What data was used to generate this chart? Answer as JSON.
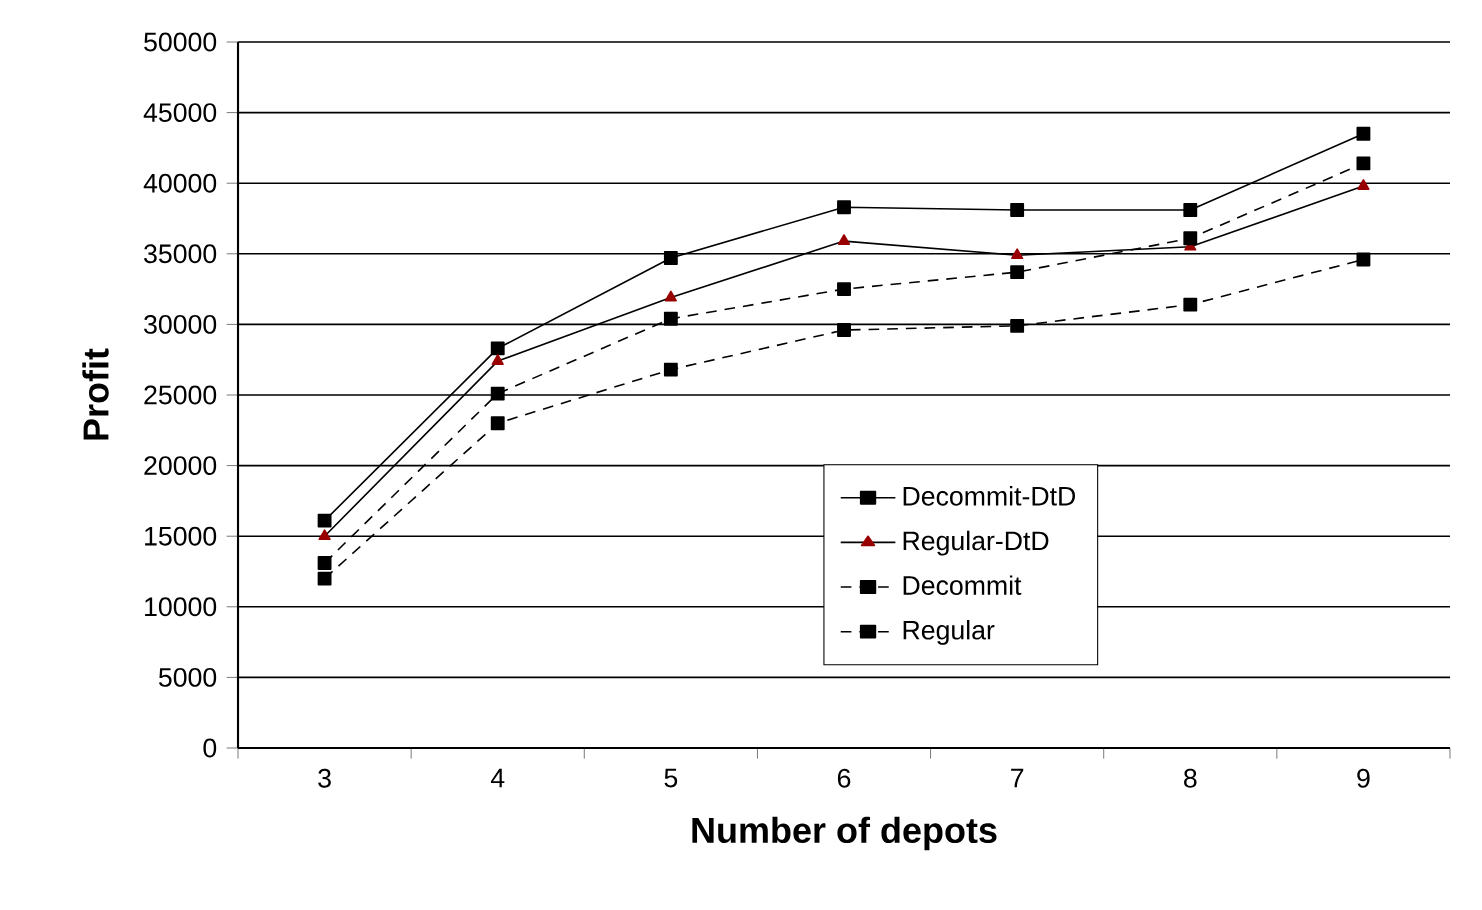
{
  "chart_data": {
    "type": "line",
    "xlabel": "Number of depots",
    "ylabel": "Profit",
    "categories": [
      "3",
      "4",
      "5",
      "6",
      "7",
      "8",
      "9"
    ],
    "series": [
      {
        "name": "Decommit-DtD",
        "color": "#000000",
        "marker": "square",
        "line_style": "solid",
        "values": [
          16100,
          28300,
          34700,
          38300,
          38100,
          38100,
          43500
        ]
      },
      {
        "name": "Regular-DtD",
        "color": "#990000",
        "marker": "triangle",
        "line_style": "solid",
        "values": [
          15000,
          27400,
          31900,
          35900,
          34900,
          35500,
          39800
        ]
      },
      {
        "name": "Decommit",
        "color": "#000000",
        "marker": "square",
        "line_style": "dashed",
        "values": [
          13100,
          25100,
          30400,
          32500,
          33700,
          36100,
          41400
        ]
      },
      {
        "name": "Regular",
        "color": "#000000",
        "marker": "square",
        "line_style": "dashed",
        "values": [
          12000,
          23000,
          26800,
          29600,
          29900,
          31400,
          34600
        ]
      }
    ],
    "ylim": [
      0,
      50000
    ],
    "yticks": [
      0,
      5000,
      10000,
      15000,
      20000,
      25000,
      30000,
      35000,
      40000,
      45000,
      50000
    ],
    "grid": "y",
    "legend": "bottom right"
  }
}
